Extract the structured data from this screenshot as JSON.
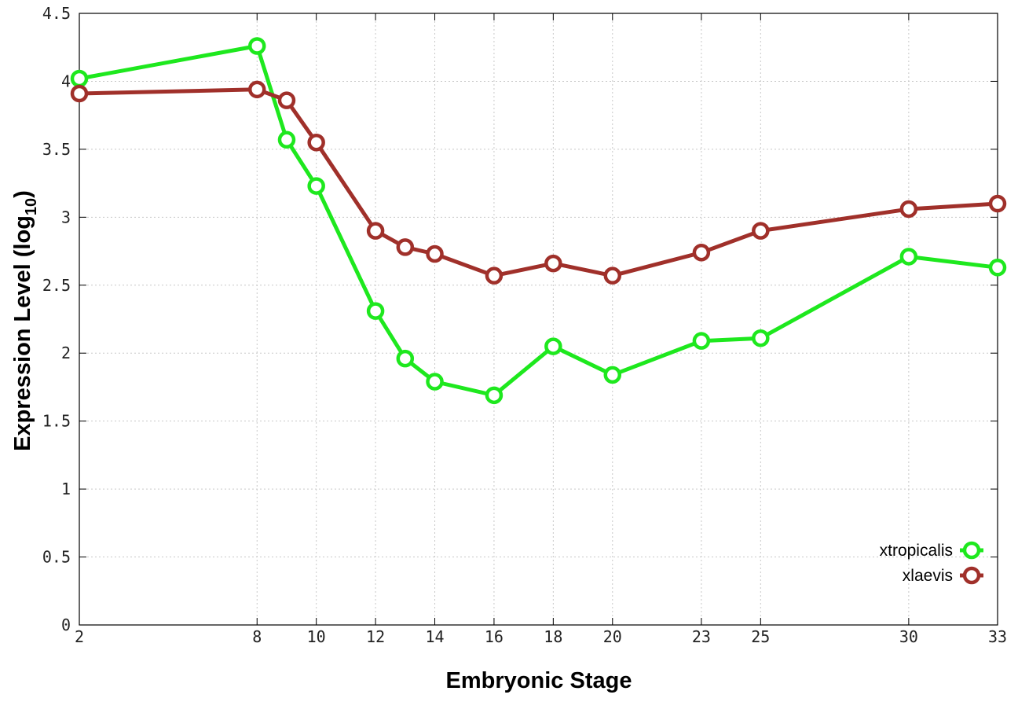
{
  "chart_data": {
    "type": "line",
    "xlabel": "Embryonic Stage",
    "ylabel": "Expression Level (log",
    "ylabel_subscript": "10",
    "ylabel_suffix": ")",
    "x_ticks": [
      2,
      8,
      10,
      12,
      14,
      16,
      18,
      20,
      23,
      25,
      30,
      33
    ],
    "y_ticks": [
      "0",
      "0.5",
      "1",
      "1.5",
      "2",
      "2.5",
      "3",
      "3.5",
      "4",
      "4.5"
    ],
    "xlim": [
      2,
      33
    ],
    "ylim": [
      0,
      4.5
    ],
    "grid": true,
    "legend_position": "bottom-right",
    "x": [
      2,
      8,
      9,
      10,
      12,
      13,
      14,
      16,
      18,
      20,
      23,
      25,
      30,
      33
    ],
    "series": [
      {
        "name": "xtropicalis",
        "color": "#1ee81e",
        "values": [
          4.02,
          4.26,
          3.57,
          3.23,
          2.31,
          1.96,
          1.79,
          1.69,
          2.05,
          1.84,
          2.09,
          2.11,
          2.71,
          2.63
        ]
      },
      {
        "name": "xlaevis",
        "color": "#a0302a",
        "values": [
          3.91,
          3.94,
          3.86,
          3.55,
          2.9,
          2.78,
          2.73,
          2.57,
          2.66,
          2.57,
          2.74,
          2.9,
          3.06,
          3.1
        ]
      }
    ]
  }
}
